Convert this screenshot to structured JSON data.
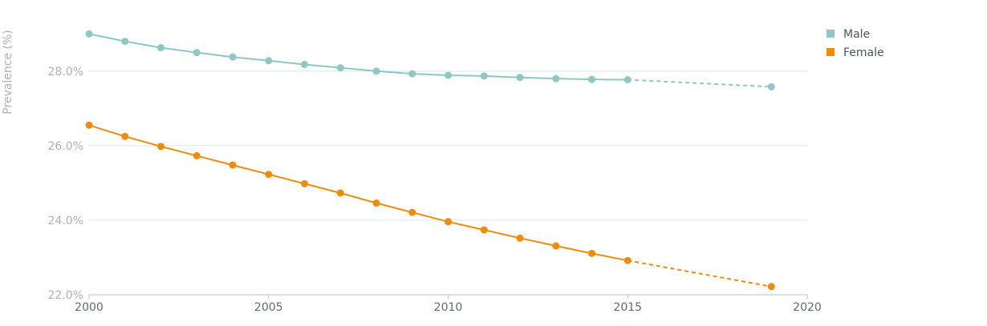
{
  "chart_data": {
    "type": "line",
    "ylabel": "Prevalence (%)",
    "xlabel": "",
    "ylim": [
      22,
      29.2
    ],
    "xlim": [
      2000,
      2020
    ],
    "y_ticks": [
      22,
      24,
      26,
      28
    ],
    "y_tick_labels": [
      "22.0%",
      "24.0%",
      "26.0%",
      "28.0%"
    ],
    "x_ticks": [
      2000,
      2005,
      2010,
      2015,
      2020
    ],
    "x_tick_labels": [
      "2000",
      "2005",
      "2010",
      "2015",
      "2020"
    ],
    "grid": "horizontal",
    "legend_position": "top-right",
    "series": [
      {
        "name": "Male",
        "color": "#8fc7c5",
        "x": [
          2000,
          2001,
          2002,
          2003,
          2004,
          2005,
          2006,
          2007,
          2008,
          2009,
          2010,
          2011,
          2012,
          2013,
          2014,
          2015
        ],
        "values": [
          29.0,
          28.8,
          28.63,
          28.5,
          28.38,
          28.28,
          28.18,
          28.09,
          28.0,
          27.93,
          27.89,
          27.87,
          27.83,
          27.8,
          27.78,
          27.77
        ],
        "projection": {
          "x": [
            2015,
            2019
          ],
          "values": [
            27.77,
            27.58
          ]
        }
      },
      {
        "name": "Female",
        "color": "#ee8c0f",
        "x": [
          2000,
          2001,
          2002,
          2003,
          2004,
          2005,
          2006,
          2007,
          2008,
          2009,
          2010,
          2011,
          2012,
          2013,
          2014,
          2015
        ],
        "values": [
          26.55,
          26.25,
          25.98,
          25.73,
          25.48,
          25.23,
          24.98,
          24.73,
          24.46,
          24.21,
          23.96,
          23.74,
          23.52,
          23.31,
          23.11,
          22.92
        ],
        "projection": {
          "x": [
            2015,
            2019
          ],
          "values": [
            22.92,
            22.22
          ]
        }
      }
    ]
  }
}
